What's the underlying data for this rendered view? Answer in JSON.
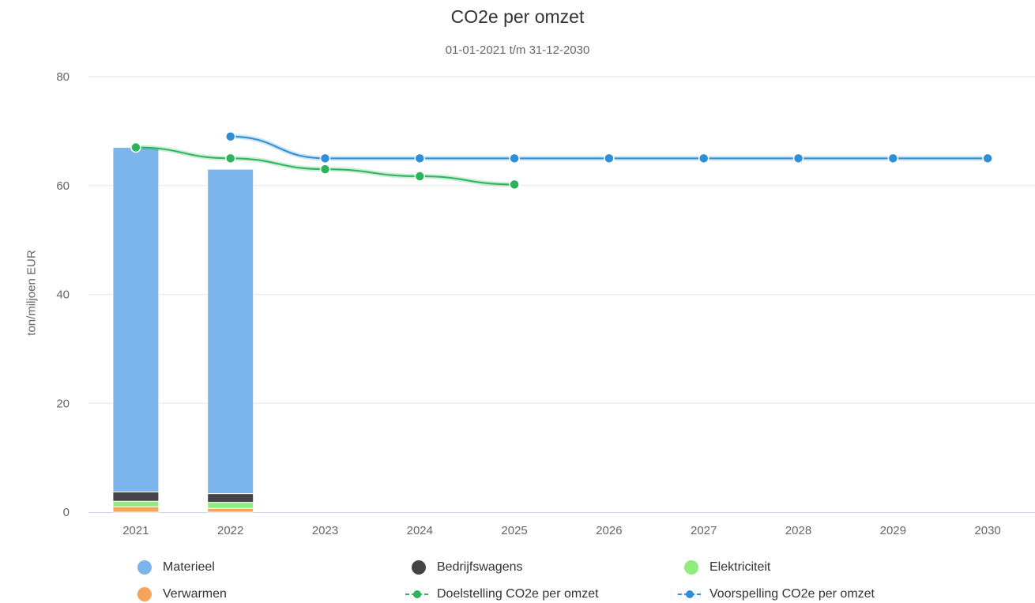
{
  "chart_data": {
    "type": "bar",
    "title": "CO2e per omzet",
    "subtitle": "01-01-2021 t/m 31-12-2030",
    "xlabel": "",
    "ylabel": "ton/miljoen EUR",
    "ylim": [
      0,
      80
    ],
    "yticks": [
      0,
      20,
      40,
      60,
      80
    ],
    "grid": true,
    "legend_position": "bottom",
    "categories": [
      "2021",
      "2022",
      "2023",
      "2024",
      "2025",
      "2026",
      "2027",
      "2028",
      "2029",
      "2030"
    ],
    "stacked_series": [
      {
        "name": "Verwarmen",
        "color": "#f7a35c",
        "values": [
          1.0,
          0.7,
          null,
          null,
          null,
          null,
          null,
          null,
          null,
          null
        ]
      },
      {
        "name": "Elektriciteit",
        "color": "#90ed7d",
        "values": [
          1.0,
          1.1,
          null,
          null,
          null,
          null,
          null,
          null,
          null,
          null
        ]
      },
      {
        "name": "Bedrijfswagens",
        "color": "#434348",
        "values": [
          1.7,
          1.6,
          null,
          null,
          null,
          null,
          null,
          null,
          null,
          null
        ]
      },
      {
        "name": "Materieel",
        "color": "#7cb5ec",
        "values": [
          63.3,
          59.6,
          null,
          null,
          null,
          null,
          null,
          null,
          null,
          null
        ]
      }
    ],
    "line_series": [
      {
        "name": "Doelstelling CO2e per omzet",
        "color": "#2db35b",
        "values": [
          67.0,
          65.0,
          63.0,
          61.7,
          60.2,
          null,
          null,
          null,
          null,
          null
        ]
      },
      {
        "name": "Voorspelling CO2e per omzet",
        "color": "#2f8fd6",
        "values": [
          null,
          69.0,
          65.0,
          65.0,
          65.0,
          65.0,
          65.0,
          65.0,
          65.0,
          65.0
        ]
      }
    ]
  },
  "legend": [
    {
      "label": "Materieel",
      "color": "#7cb5ec",
      "kind": "dot"
    },
    {
      "label": "Bedrijfswagens",
      "color": "#434348",
      "kind": "dot"
    },
    {
      "label": "Elektriciteit",
      "color": "#90ed7d",
      "kind": "dot"
    },
    {
      "label": "Verwarmen",
      "color": "#f7a35c",
      "kind": "dot"
    },
    {
      "label": "Doelstelling CO2e per omzet",
      "color": "#2db35b",
      "kind": "line"
    },
    {
      "label": "Voorspelling CO2e per omzet",
      "color": "#2f8fd6",
      "kind": "line"
    }
  ]
}
